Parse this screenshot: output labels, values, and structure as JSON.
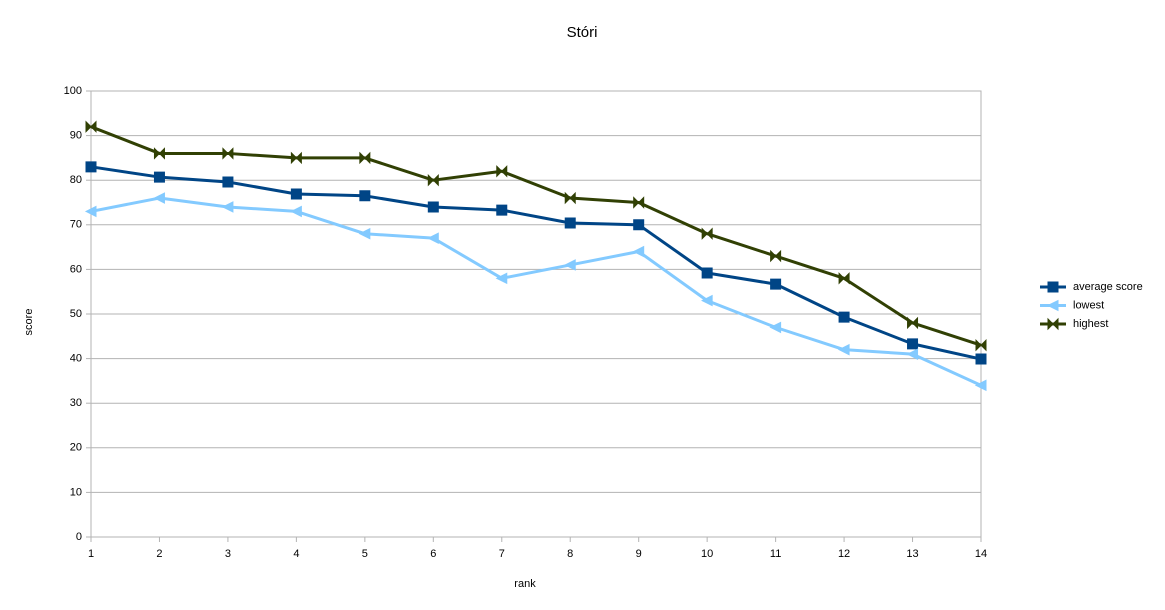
{
  "chart_data": {
    "type": "line",
    "title": "Stóri",
    "xlabel": "rank",
    "ylabel": "score",
    "x": [
      1,
      2,
      3,
      4,
      5,
      6,
      7,
      8,
      9,
      10,
      11,
      12,
      13,
      14
    ],
    "series": [
      {
        "name": "average score",
        "color": "#004586",
        "marker": "square",
        "values": [
          83,
          80.7,
          79.6,
          76.9,
          76.5,
          74,
          73.3,
          70.4,
          70,
          59.2,
          56.7,
          49.3,
          43.3,
          39.9
        ]
      },
      {
        "name": "lowest",
        "color": "#83caff",
        "marker": "triangle-left",
        "values": [
          73,
          76,
          74,
          73,
          68,
          67,
          58,
          61,
          64,
          53,
          47,
          42,
          41,
          34
        ]
      },
      {
        "name": "highest",
        "color": "#314004",
        "marker": "bowtie",
        "values": [
          92,
          86,
          86,
          85,
          85,
          80,
          82,
          76,
          75,
          68,
          63,
          58,
          48,
          43
        ]
      }
    ],
    "xlim": [
      1,
      14
    ],
    "xticks": [
      1,
      2,
      3,
      4,
      5,
      6,
      7,
      8,
      9,
      10,
      11,
      12,
      13,
      14
    ],
    "ylim": [
      0,
      100
    ],
    "yticks": [
      0,
      10,
      20,
      30,
      40,
      50,
      60,
      70,
      80,
      90,
      100
    ],
    "grid": true,
    "legend": "right"
  }
}
